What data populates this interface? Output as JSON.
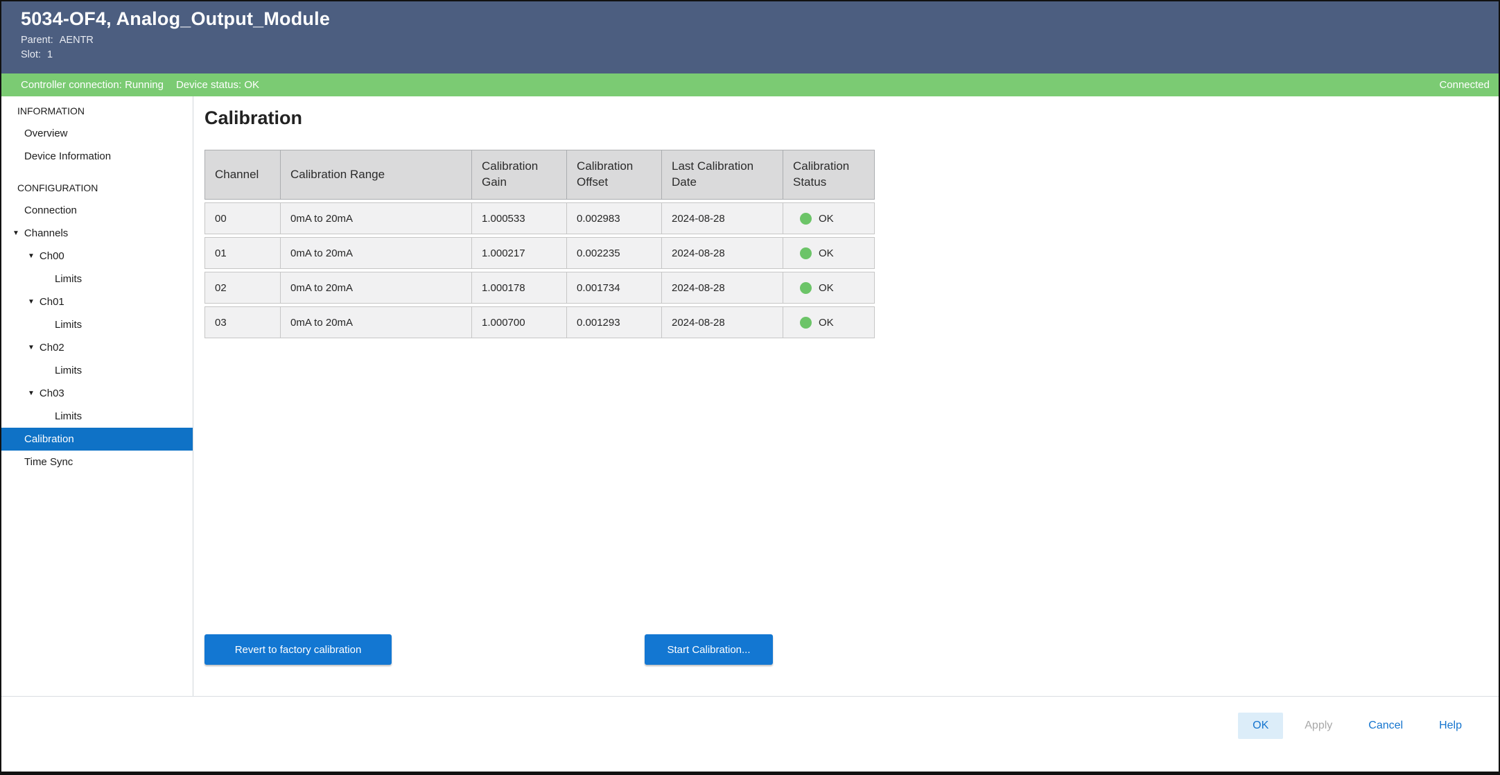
{
  "window": {
    "title": "5034-OF4, Analog_Output_Module",
    "parent_label": "Parent:",
    "parent_value": "AENTR",
    "slot_label": "Slot:",
    "slot_value": "1"
  },
  "status_bar": {
    "controller_connection": "Controller connection: Running",
    "device_status": "Device status: OK",
    "connection_state": "Connected"
  },
  "sidebar": {
    "items": [
      {
        "style": "section",
        "label": "INFORMATION"
      },
      {
        "style": "item",
        "label": "Overview"
      },
      {
        "style": "item",
        "label": "Device Information"
      },
      {
        "style": "section",
        "label": "CONFIGURATION",
        "gap": true
      },
      {
        "style": "item",
        "label": "Connection"
      },
      {
        "style": "channels",
        "label": "Channels",
        "expanded": true
      },
      {
        "style": "channel",
        "label": "Ch00",
        "expanded": true
      },
      {
        "style": "limits",
        "label": "Limits"
      },
      {
        "style": "channel",
        "label": "Ch01",
        "expanded": true
      },
      {
        "style": "limits",
        "label": "Limits"
      },
      {
        "style": "channel",
        "label": "Ch02",
        "expanded": true
      },
      {
        "style": "limits",
        "label": "Limits"
      },
      {
        "style": "channel",
        "label": "Ch03",
        "expanded": true
      },
      {
        "style": "limits",
        "label": "Limits"
      },
      {
        "style": "item",
        "label": "Calibration",
        "selected": true
      },
      {
        "style": "item",
        "label": "Time Sync"
      }
    ],
    "expand_icon": "▼"
  },
  "main": {
    "page_title": "Calibration",
    "table": {
      "columns": [
        "Channel",
        "Calibration Range",
        "Calibration Gain",
        "Calibration Offset",
        "Last Calibration Date",
        "Calibration Status"
      ],
      "rows": [
        {
          "channel": "00",
          "range": "0mA to 20mA",
          "gain": "1.000533",
          "offset": "0.002983",
          "date": "2024-08-28",
          "status": "OK"
        },
        {
          "channel": "01",
          "range": "0mA to 20mA",
          "gain": "1.000217",
          "offset": "0.002235",
          "date": "2024-08-28",
          "status": "OK"
        },
        {
          "channel": "02",
          "range": "0mA to 20mA",
          "gain": "1.000178",
          "offset": "0.001734",
          "date": "2024-08-28",
          "status": "OK"
        },
        {
          "channel": "03",
          "range": "0mA to 20mA",
          "gain": "1.000700",
          "offset": "0.001293",
          "date": "2024-08-28",
          "status": "OK"
        }
      ]
    },
    "buttons": {
      "revert_label": "Revert to factory calibration",
      "start_label": "Start Calibration..."
    }
  },
  "footer": {
    "ok_label": "OK",
    "apply_label": "Apply",
    "cancel_label": "Cancel",
    "help_label": "Help"
  },
  "colors": {
    "header_bg": "#4C5E80",
    "status_bg": "#7BCB73",
    "selected_bg": "#0F72C6",
    "accent": "#1377D2",
    "link_blue": "#1474CE",
    "ok_btn_bg": "#DCEDF9",
    "ok_dot": "#6CC468",
    "table_header_bg": "#DADADB",
    "table_row_bg": "#F1F1F2"
  }
}
